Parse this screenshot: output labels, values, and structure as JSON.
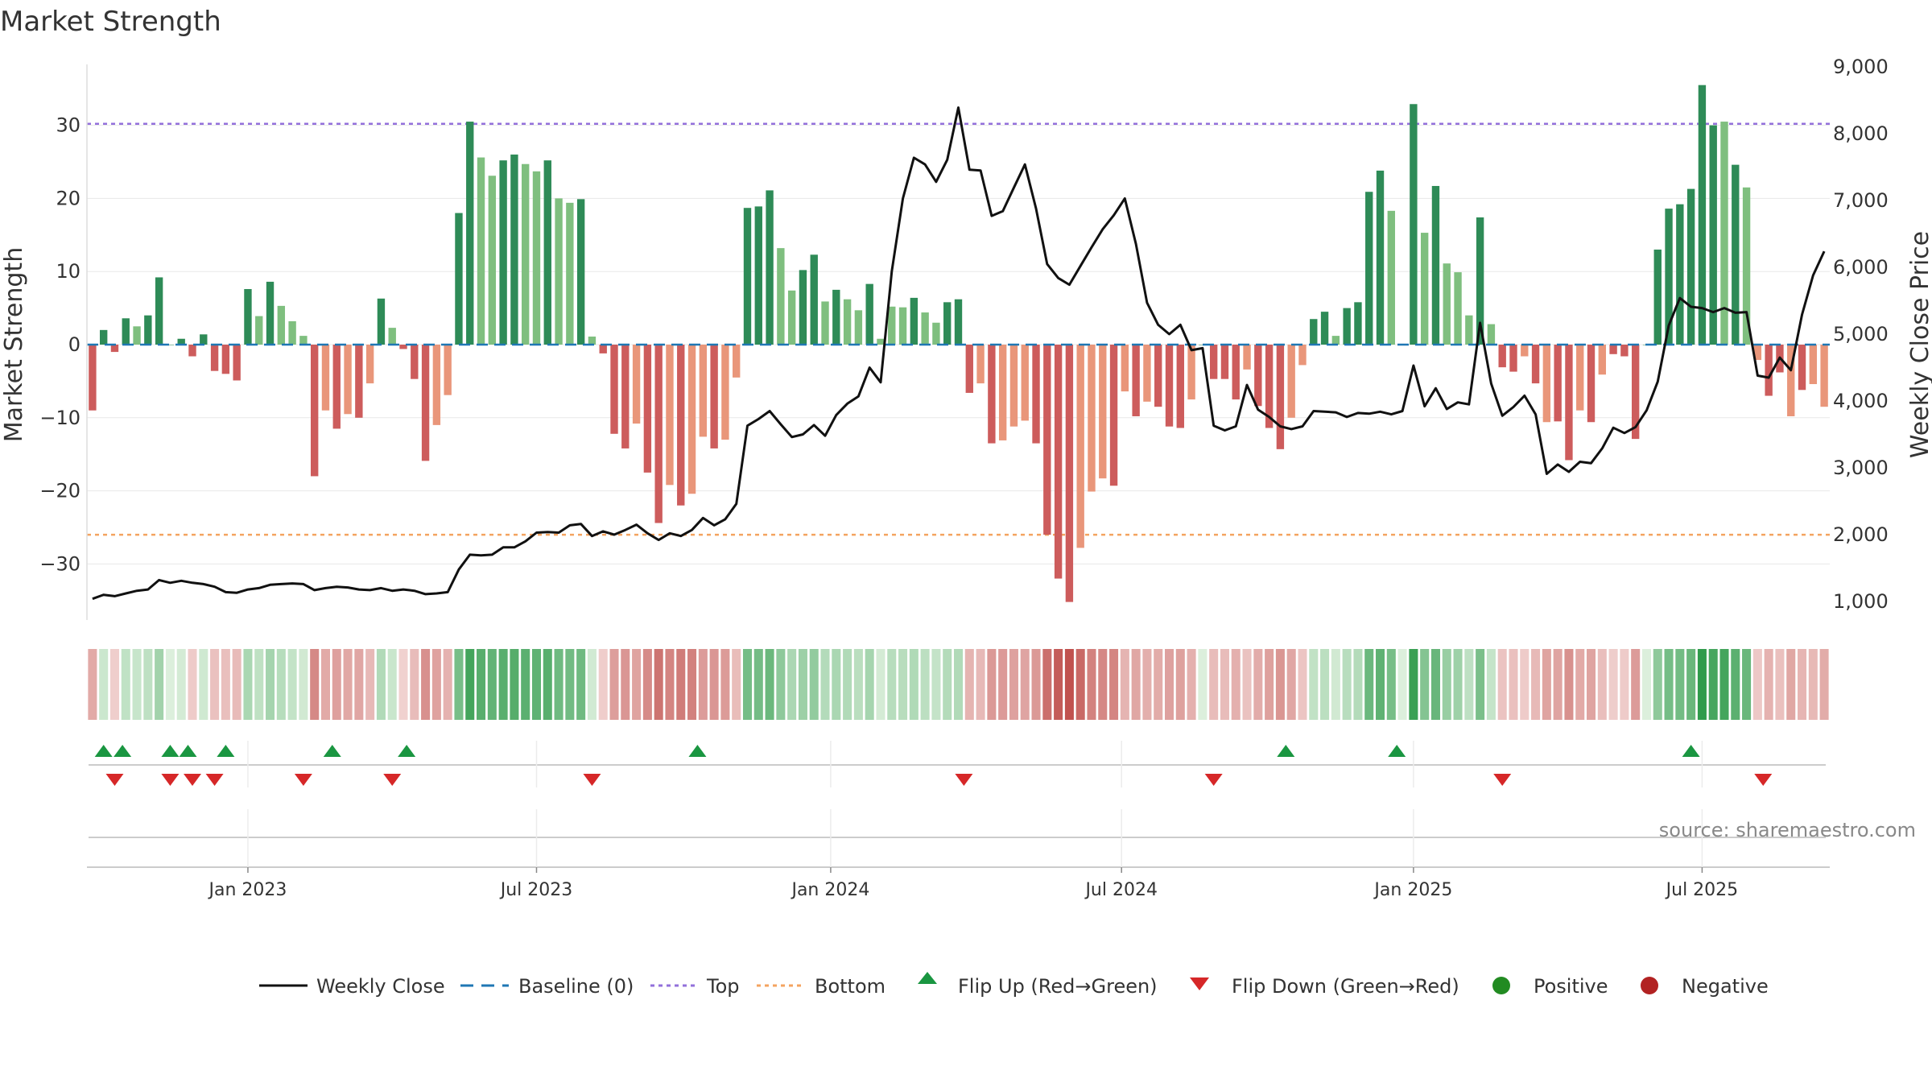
{
  "chart_data": {
    "type": "bar",
    "title": "Market Strength",
    "ylabel_left": "Market Strength",
    "ylabel_right": "Weekly Close Price",
    "ylim_left": [
      -38,
      38
    ],
    "ylim_right": [
      560,
      9000
    ],
    "yticks_left": [
      30,
      20,
      10,
      0,
      -10,
      -20,
      -30
    ],
    "yticks_left_labels": [
      "30",
      "20",
      "10",
      "0",
      "−10",
      "−20",
      "−30"
    ],
    "yticks_right": [
      9000,
      8000,
      7000,
      6000,
      5000,
      4000,
      3000,
      2000,
      1000
    ],
    "yticks_right_labels": [
      "9,000",
      "8,000",
      "7,000",
      "6,000",
      "5,000",
      "4,000",
      "3,000",
      "2,000",
      "1,000"
    ],
    "x_tick_labels": [
      "Jan 2023",
      "Jul 2023",
      "Jan 2024",
      "Jul 2024",
      "Jan 2025",
      "Jul 2025"
    ],
    "x_tick_weeks": [
      14,
      40,
      66.5,
      92.7,
      119,
      145
    ],
    "top_line": 30.2,
    "bottom_line": -26,
    "colors": {
      "pos_strong": "#2e8b57",
      "pos_weak": "#7fbf7f",
      "neg_strong": "#cd5c5c",
      "neg_weak": "#e9967a",
      "top": "#9370db",
      "bottom": "#f4a460",
      "baseline": "#1f77b4",
      "close": "#111111",
      "flip_up": "#1a9641",
      "flip_down": "#d62728",
      "positive": "#228b22",
      "negative": "#b22222"
    },
    "strength": [
      -9,
      2,
      -1,
      3.6,
      2.5,
      4,
      9.2,
      0,
      0.8,
      -1.6,
      1.4,
      -3.6,
      -4,
      -4.9,
      7.6,
      3.9,
      8.6,
      5.3,
      3.2,
      1.2,
      -18,
      -9,
      -11.5,
      -9.5,
      -10,
      -5.3,
      6.3,
      2.3,
      -0.6,
      -4.7,
      -15.9,
      -11,
      -6.9,
      18,
      30.5,
      25.6,
      23.1,
      25.2,
      26,
      24.7,
      23.7,
      25.2,
      20,
      19.4,
      19.9,
      1.1,
      -1.2,
      -12.2,
      -14.2,
      -10.8,
      -17.5,
      -24.4,
      -19.2,
      -22,
      -20.4,
      -12.6,
      -14.2,
      -13,
      -4.5,
      18.7,
      18.9,
      21.1,
      13.2,
      7.4,
      10.2,
      12.3,
      5.9,
      7.5,
      6.2,
      4.7,
      8.3,
      0.8,
      5.2,
      5.1,
      6.4,
      4.4,
      3,
      5.8,
      6.2,
      -6.6,
      -5.3,
      -13.5,
      -13.1,
      -11.2,
      -10.4,
      -13.5,
      -26,
      -32,
      -35.2,
      -27.8,
      -20.1,
      -18.3,
      -19.3,
      -6.4,
      -9.8,
      -7.8,
      -8.5,
      -11.2,
      -11.4,
      -7.5,
      0,
      -4.7,
      -4.7,
      -7.5,
      -3.4,
      -8.4,
      -11.4,
      -14.3,
      -10,
      -2.8,
      3.5,
      4.5,
      1.2,
      5,
      5.8,
      20.9,
      23.8,
      18.3,
      0,
      32.9,
      15.3,
      21.7,
      11.1,
      9.9,
      4,
      17.4,
      2.8,
      -3.1,
      -3.7,
      -1.6,
      -5.3,
      -10.6,
      -10.5,
      -15.8,
      -9,
      -10.6,
      -4.1,
      -1.3,
      -1.6,
      -12.9,
      0,
      13,
      18.6,
      19.2,
      21.3,
      35.5,
      30,
      30.5,
      24.6,
      21.5,
      -2.1,
      -7,
      -3.8,
      -9.8,
      -6.2,
      -5.4,
      -8.5
    ],
    "strength_shade": [
      "s",
      "s",
      "s",
      "s",
      "w",
      "s",
      "s",
      "s",
      "s",
      "s",
      "s",
      "s",
      "s",
      "s",
      "s",
      "w",
      "s",
      "w",
      "w",
      "w",
      "s",
      "w",
      "s",
      "w",
      "s",
      "w",
      "s",
      "w",
      "s",
      "s",
      "s",
      "w",
      "w",
      "s",
      "s",
      "w",
      "w",
      "s",
      "s",
      "w",
      "w",
      "s",
      "w",
      "w",
      "s",
      "w",
      "s",
      "s",
      "s",
      "w",
      "s",
      "s",
      "w",
      "s",
      "w",
      "w",
      "s",
      "w",
      "w",
      "s",
      "s",
      "s",
      "w",
      "w",
      "s",
      "s",
      "w",
      "s",
      "w",
      "w",
      "s",
      "w",
      "w",
      "w",
      "s",
      "w",
      "w",
      "s",
      "s",
      "s",
      "w",
      "s",
      "w",
      "w",
      "w",
      "s",
      "s",
      "s",
      "s",
      "w",
      "w",
      "w",
      "s",
      "w",
      "s",
      "w",
      "s",
      "s",
      "s",
      "w",
      "s",
      "s",
      "s",
      "s",
      "w",
      "s",
      "s",
      "s",
      "w",
      "w",
      "s",
      "s",
      "w",
      "s",
      "s",
      "s",
      "s",
      "w",
      "s",
      "s",
      "w",
      "s",
      "w",
      "w",
      "w",
      "s",
      "w",
      "s",
      "s",
      "w",
      "s",
      "w",
      "s",
      "s",
      "w",
      "s",
      "w",
      "s",
      "s",
      "s",
      "s",
      "s",
      "s",
      "s",
      "s",
      "s",
      "s",
      "w",
      "s",
      "w",
      "w",
      "s",
      "s",
      "w",
      "s",
      "w",
      "w",
      "s"
    ],
    "weekly_close": [
      1040,
      1100,
      1080,
      1120,
      1160,
      1180,
      1320,
      1280,
      1310,
      1280,
      1260,
      1220,
      1140,
      1130,
      1180,
      1200,
      1250,
      1260,
      1270,
      1260,
      1170,
      1200,
      1220,
      1210,
      1180,
      1170,
      1200,
      1160,
      1180,
      1160,
      1110,
      1120,
      1140,
      1480,
      1700,
      1690,
      1700,
      1810,
      1810,
      1900,
      2030,
      2040,
      2030,
      2140,
      2160,
      1980,
      2050,
      2000,
      2070,
      2150,
      2020,
      1920,
      2020,
      1980,
      2070,
      2250,
      2140,
      2230,
      2460,
      3630,
      3730,
      3850,
      3650,
      3460,
      3500,
      3640,
      3480,
      3790,
      3960,
      4070,
      4500,
      4280,
      5940,
      7030,
      7640,
      7540,
      7280,
      7610,
      8390,
      7460,
      7450,
      6770,
      6840,
      7190,
      7540,
      6880,
      6050,
      5840,
      5740,
      6020,
      6300,
      6570,
      6780,
      7030,
      6350,
      5470,
      5140,
      5000,
      5140,
      4760,
      4790,
      3630,
      3560,
      3620,
      4240,
      3870,
      3760,
      3620,
      3580,
      3620,
      3850,
      3840,
      3830,
      3760,
      3820,
      3810,
      3840,
      3800,
      3850,
      4530,
      3920,
      4190,
      3880,
      3980,
      3950,
      5170,
      4260,
      3780,
      3910,
      4080,
      3800,
      2910,
      3050,
      2940,
      3090,
      3070,
      3290,
      3600,
      3520,
      3610,
      3860,
      4290,
      5130,
      5540,
      5410,
      5390,
      5330,
      5390,
      5320,
      5330,
      4380,
      4350,
      4650,
      4460,
      5290,
      5880,
      6240
    ],
    "flip_up_weeks": [
      1,
      2.7,
      7,
      8.6,
      12,
      21.6,
      28.3,
      54.5,
      107.5,
      117.5,
      144
    ],
    "flip_down_weeks": [
      2,
      7,
      9,
      11,
      19,
      27,
      45,
      78.5,
      101,
      127,
      150.5
    ],
    "legend": [
      "Weekly Close",
      "Baseline (0)",
      "Top",
      "Bottom",
      "Flip Up (Red→Green)",
      "Flip Down (Green→Red)",
      "Positive",
      "Negative"
    ],
    "source": "source: sharemaestro.com"
  }
}
